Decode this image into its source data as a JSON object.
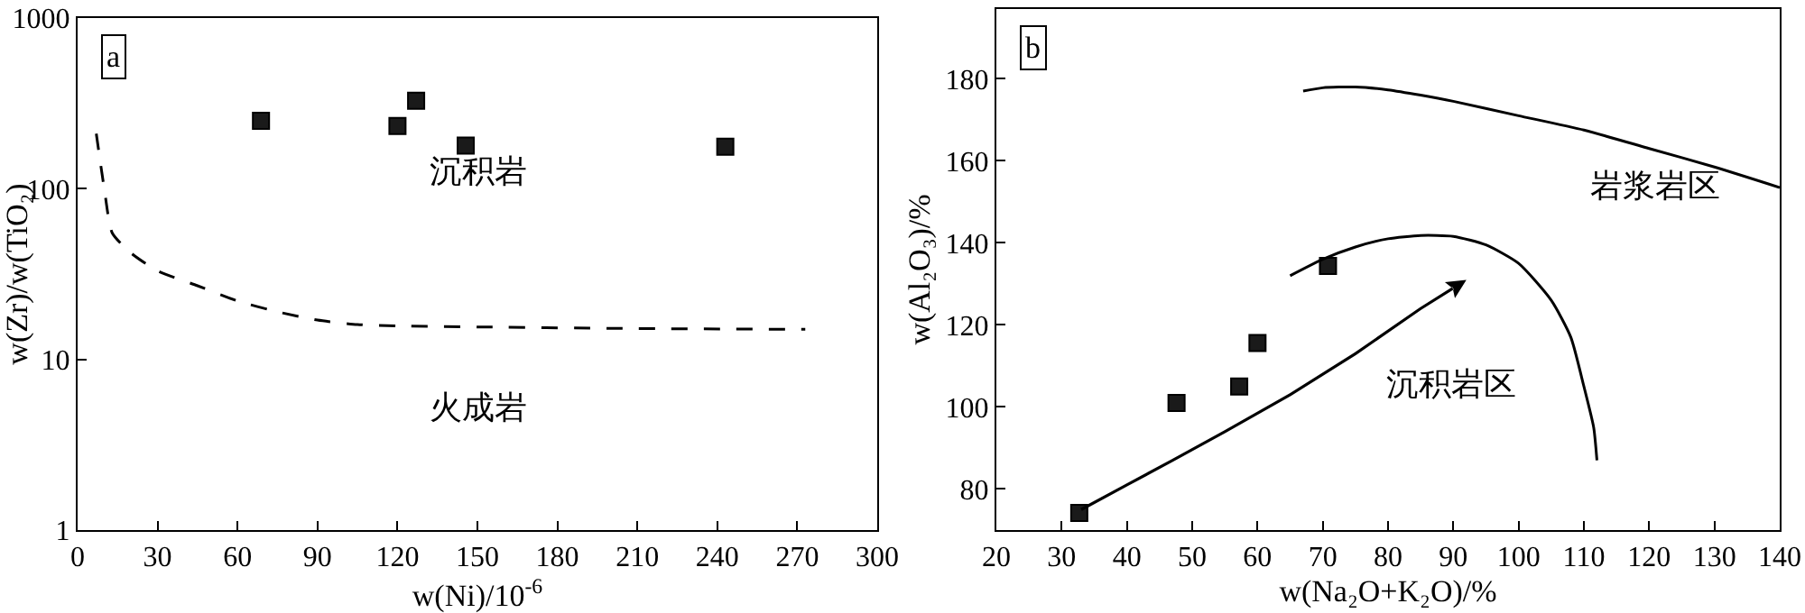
{
  "chart_data": [
    {
      "type": "scatter",
      "xlabel": "w(Ni)/10$^{-6}$",
      "ylabel": "w(Zr)/w(TiO₂)",
      "log": "y",
      "xlim": [
        0,
        300
      ],
      "xticks": [
        0,
        30,
        60,
        90,
        120,
        150,
        180,
        210,
        240,
        270,
        300
      ],
      "ylim": [
        1,
        1000
      ],
      "yticks": [
        1,
        10,
        100,
        1000
      ],
      "annotations": [
        "a",
        "沉积岩",
        "火成岩"
      ],
      "series": [
        {
          "type": "scatter",
          "marker": "square",
          "color": "#1a1a1a",
          "x": [
            68.8,
            120,
            127,
            145.6,
            243
          ],
          "values": [
            250,
            233,
            328,
            179,
            176
          ]
        },
        {
          "type": "line",
          "line_style": "dashed",
          "marker": "none",
          "color": "#000000",
          "x": [
            7,
            10,
            13,
            20,
            30,
            45,
            60,
            75,
            90,
            105,
            120,
            150,
            200,
            273
          ],
          "values": [
            210,
            100,
            55,
            42,
            33,
            27,
            22,
            19,
            17,
            16,
            15.7,
            15.5,
            15.2,
            15
          ]
        }
      ]
    },
    {
      "type": "scatter",
      "xlabel": "w(Na₂O+K₂O)/%",
      "ylabel": "w(Al₂O₃)/%",
      "xlim": [
        20,
        140
      ],
      "xticks": [
        20,
        30,
        40,
        50,
        60,
        70,
        80,
        90,
        100,
        110,
        120,
        130,
        140
      ],
      "ylim": [
        70,
        197
      ],
      "yticks": [
        80,
        100,
        120,
        140,
        160,
        180
      ],
      "annotations": [
        "b",
        "岩浆岩区",
        "沉积岩区"
      ],
      "series": [
        {
          "type": "scatter",
          "marker": "square",
          "color": "#1a1a1a",
          "x": [
            32.7,
            47.6,
            57.2,
            60,
            70.8
          ],
          "values": [
            74.2,
            101,
            105,
            115.6,
            134.4
          ]
        },
        {
          "type": "line",
          "line_style": "solid",
          "marker": "none",
          "color": "#000000",
          "x": [
            67,
            70,
            75,
            80,
            85,
            90,
            100,
            110,
            120,
            130,
            140
          ],
          "values": [
            177,
            177.8,
            178,
            177.3,
            176,
            174.5,
            171,
            167.5,
            163,
            158.5,
            153.5
          ]
        },
        {
          "type": "line",
          "line_style": "solid",
          "marker": "none",
          "color": "#000000",
          "x": [
            65,
            70,
            75,
            80,
            85,
            90,
            95,
            100,
            105,
            108,
            110,
            111.5,
            112
          ],
          "values": [
            132,
            136,
            139,
            141,
            141.8,
            141.6,
            139.5,
            135,
            126,
            117,
            105,
            95,
            87
          ]
        }
      ]
    }
  ]
}
